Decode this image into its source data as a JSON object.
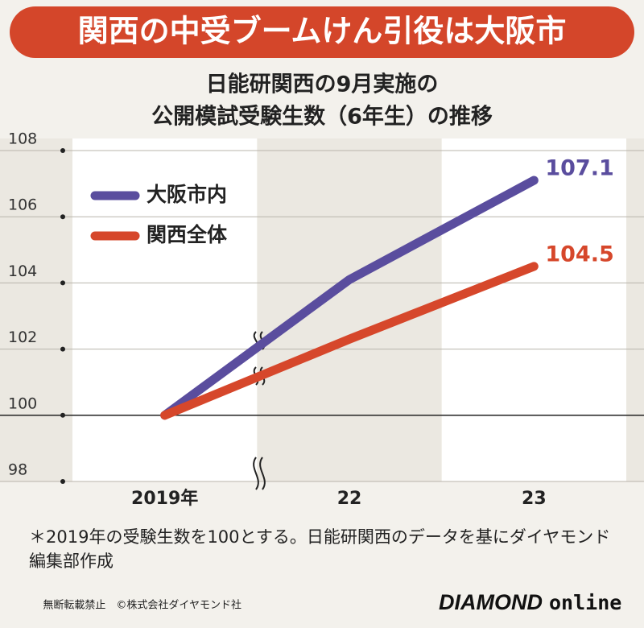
{
  "header": {
    "title": "関西の中受ブームけん引役は大阪市"
  },
  "chart_data": {
    "type": "line",
    "title": [
      "日能研関西の9月実施の",
      "公開模試受験生数（6年生）の推移"
    ],
    "categories": [
      "2019年",
      "22",
      "23"
    ],
    "series": [
      {
        "name": "大阪市内",
        "color": "#5a4d9e",
        "values": [
          100,
          104.1,
          107.1
        ]
      },
      {
        "name": "関西全体",
        "color": "#d6472b",
        "values": [
          100,
          102.3,
          104.5
        ]
      }
    ],
    "ylim": [
      98,
      108
    ],
    "yticks": [
      98,
      100,
      102,
      104,
      106,
      108
    ],
    "grid": true,
    "legend": "upper-left"
  },
  "footnote": "＊2019年の受験生数を100とする。日能研関西のデータを基にダイヤモンド編集部作成",
  "footer": {
    "credit": "無断転載禁止　©株式会社ダイヤモンド社",
    "logo_main": "DIAMOND",
    "logo_sub": "online"
  }
}
